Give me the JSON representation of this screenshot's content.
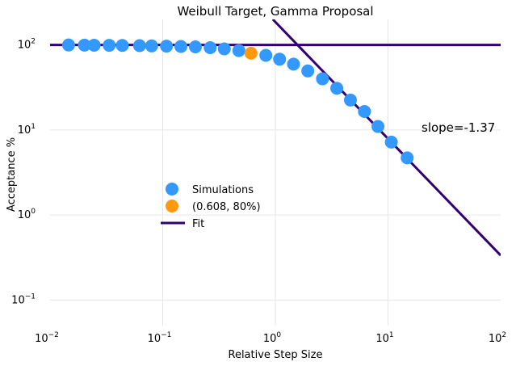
{
  "chart_data": {
    "type": "scatter",
    "title": "Weibull Target, Gamma Proposal",
    "xlabel": "Relative Step Size",
    "ylabel": "Acceptance %",
    "xscale": "log",
    "yscale": "log",
    "xlim": [
      0.01,
      100
    ],
    "ylim": [
      0.05,
      200
    ],
    "grid": true,
    "legend_position": "center-left",
    "x_ticks": [
      {
        "value": 0.01,
        "base": "10",
        "exp": "−2"
      },
      {
        "value": 0.1,
        "base": "10",
        "exp": "−1"
      },
      {
        "value": 1,
        "base": "10",
        "exp": "0"
      },
      {
        "value": 10,
        "base": "10",
        "exp": "1"
      },
      {
        "value": 100,
        "base": "10",
        "exp": "2"
      }
    ],
    "y_ticks": [
      {
        "value": 0.1,
        "base": "10",
        "exp": "−1"
      },
      {
        "value": 1,
        "base": "10",
        "exp": "0"
      },
      {
        "value": 10,
        "base": "10",
        "exp": "1"
      },
      {
        "value": 100,
        "base": "10",
        "exp": "2"
      }
    ],
    "series": [
      {
        "name": "Simulations",
        "kind": "scatter",
        "color": "#3399ff",
        "x": [
          0.0146,
          0.0202,
          0.0246,
          0.0335,
          0.0438,
          0.0623,
          0.0797,
          0.108,
          0.145,
          0.195,
          0.264,
          0.352,
          0.474,
          0.823,
          1.09,
          1.45,
          1.94,
          2.62,
          3.51,
          4.64,
          6.18,
          8.14,
          10.7,
          14.8
        ],
        "y": [
          100,
          99.5,
          99.4,
          99.1,
          98.8,
          98.2,
          97.6,
          97.0,
          96.2,
          95.1,
          93.0,
          90.0,
          86.0,
          75.5,
          68.0,
          59.5,
          49.5,
          40.0,
          31.0,
          22.5,
          16.5,
          11.0,
          7.2,
          4.7
        ]
      },
      {
        "name": "(0.608, 80%)",
        "kind": "scatter",
        "color": "#ff9910",
        "x": [
          0.608
        ],
        "y": [
          80
        ]
      },
      {
        "name": "Fit",
        "kind": "line",
        "color": "#33006f",
        "segments": [
          {
            "x": [
              0.01,
              100
            ],
            "y": [
              100,
              100
            ]
          },
          {
            "x": [
              0.95,
              100
            ],
            "y": [
              200,
              0.335
            ]
          }
        ]
      }
    ],
    "annotation": "slope=-1.37"
  }
}
